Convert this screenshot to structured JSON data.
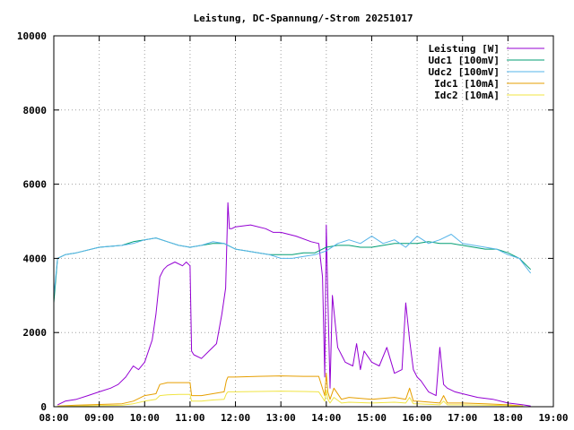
{
  "chart_data": {
    "type": "line",
    "title": "Leistung, DC-Spannung/-Strom 20251017",
    "xlabel": "",
    "ylabel": "",
    "xlim": [
      "08:00",
      "19:00"
    ],
    "ylim": [
      0,
      10000
    ],
    "x_ticks": [
      "08:00",
      "09:00",
      "10:00",
      "11:00",
      "12:00",
      "13:00",
      "14:00",
      "15:00",
      "16:00",
      "17:00",
      "18:00",
      "19:00"
    ],
    "y_ticks": [
      "0",
      "2000",
      "4000",
      "6000",
      "8000",
      "10000"
    ],
    "grid": true,
    "legend_position": "top-right",
    "series": [
      {
        "name": "Leistung [W]",
        "color": "#9400d3",
        "x": [
          "08:05",
          "08:15",
          "08:30",
          "08:45",
          "09:00",
          "09:15",
          "09:25",
          "09:35",
          "09:45",
          "09:52",
          "10:00",
          "10:10",
          "10:15",
          "10:20",
          "10:25",
          "10:30",
          "10:40",
          "10:50",
          "10:55",
          "11:00",
          "11:02",
          "11:05",
          "11:15",
          "11:25",
          "11:35",
          "11:42",
          "11:47",
          "11:50",
          "11:52",
          "11:55",
          "12:00",
          "12:20",
          "12:40",
          "12:50",
          "13:00",
          "13:20",
          "13:40",
          "13:50",
          "13:55",
          "13:58",
          "14:00",
          "14:02",
          "14:05",
          "14:08",
          "14:15",
          "14:25",
          "14:35",
          "14:40",
          "14:45",
          "14:50",
          "15:00",
          "15:10",
          "15:20",
          "15:30",
          "15:40",
          "15:45",
          "15:50",
          "15:55",
          "16:00",
          "16:05",
          "16:15",
          "16:25",
          "16:30",
          "16:35",
          "16:40",
          "16:50",
          "17:00",
          "17:20",
          "17:40",
          "18:00",
          "18:20",
          "18:30"
        ],
        "values": [
          50,
          150,
          200,
          300,
          400,
          500,
          600,
          800,
          1100,
          1000,
          1200,
          1800,
          2500,
          3500,
          3700,
          3800,
          3900,
          3800,
          3900,
          3800,
          1500,
          1400,
          1300,
          1500,
          1700,
          2500,
          3200,
          5500,
          4800,
          4800,
          4850,
          4900,
          4800,
          4700,
          4700,
          4600,
          4450,
          4400,
          3500,
          800,
          4900,
          3000,
          500,
          3000,
          1600,
          1200,
          1100,
          1700,
          1000,
          1500,
          1200,
          1100,
          1600,
          900,
          1000,
          2800,
          1800,
          1000,
          800,
          700,
          400,
          300,
          1600,
          600,
          500,
          400,
          350,
          250,
          200,
          100,
          50,
          20
        ]
      },
      {
        "name": "Udc1 [100mV]",
        "color": "#009e73",
        "x": [
          "08:00",
          "08:05",
          "08:15",
          "08:30",
          "09:00",
          "09:30",
          "09:45",
          "10:00",
          "10:15",
          "10:30",
          "10:45",
          "11:00",
          "11:15",
          "11:30",
          "11:45",
          "12:00",
          "12:15",
          "12:30",
          "12:45",
          "13:00",
          "13:15",
          "13:30",
          "13:45",
          "14:00",
          "14:15",
          "14:30",
          "14:45",
          "15:00",
          "15:15",
          "15:30",
          "15:45",
          "16:00",
          "16:15",
          "16:30",
          "16:45",
          "17:00",
          "17:15",
          "17:30",
          "17:45",
          "18:00",
          "18:15",
          "18:30"
        ],
        "values": [
          2800,
          4000,
          4100,
          4150,
          4300,
          4350,
          4450,
          4500,
          4550,
          4450,
          4350,
          4300,
          4350,
          4400,
          4400,
          4250,
          4200,
          4150,
          4100,
          4100,
          4100,
          4150,
          4150,
          4300,
          4350,
          4350,
          4300,
          4300,
          4350,
          4400,
          4400,
          4400,
          4450,
          4400,
          4400,
          4350,
          4300,
          4250,
          4250,
          4150,
          4000,
          3700
        ]
      },
      {
        "name": "Udc2 [100mV]",
        "color": "#56b4e9",
        "x": [
          "08:00",
          "08:05",
          "08:15",
          "08:30",
          "09:00",
          "09:30",
          "09:45",
          "10:00",
          "10:15",
          "10:30",
          "10:45",
          "11:00",
          "11:15",
          "11:30",
          "11:45",
          "12:00",
          "12:15",
          "12:30",
          "12:45",
          "13:00",
          "13:15",
          "13:30",
          "13:45",
          "14:00",
          "14:15",
          "14:30",
          "14:45",
          "15:00",
          "15:15",
          "15:30",
          "15:45",
          "16:00",
          "16:15",
          "16:30",
          "16:45",
          "17:00",
          "17:15",
          "17:30",
          "17:45",
          "18:00",
          "18:15",
          "18:30"
        ],
        "values": [
          3000,
          4000,
          4100,
          4150,
          4300,
          4350,
          4400,
          4500,
          4550,
          4450,
          4350,
          4300,
          4350,
          4450,
          4400,
          4250,
          4200,
          4150,
          4100,
          4000,
          4000,
          4050,
          4100,
          4200,
          4400,
          4500,
          4400,
          4600,
          4400,
          4500,
          4300,
          4600,
          4400,
          4500,
          4650,
          4400,
          4350,
          4300,
          4250,
          4100,
          4000,
          3600
        ]
      },
      {
        "name": "Idc1 [10mA]",
        "color": "#e69f00",
        "x": [
          "08:05",
          "08:30",
          "09:00",
          "09:30",
          "09:45",
          "10:00",
          "10:15",
          "10:20",
          "10:30",
          "10:45",
          "11:00",
          "11:02",
          "11:15",
          "11:30",
          "11:45",
          "11:48",
          "11:50",
          "12:00",
          "12:30",
          "13:00",
          "13:30",
          "13:50",
          "13:58",
          "14:00",
          "14:02",
          "14:05",
          "14:10",
          "14:20",
          "14:30",
          "15:00",
          "15:30",
          "15:45",
          "15:50",
          "15:55",
          "16:00",
          "16:30",
          "16:35",
          "16:40",
          "17:00",
          "17:30",
          "18:00",
          "18:20"
        ],
        "values": [
          20,
          40,
          60,
          80,
          150,
          300,
          350,
          600,
          650,
          650,
          650,
          300,
          300,
          350,
          400,
          700,
          800,
          800,
          820,
          830,
          820,
          820,
          300,
          900,
          400,
          200,
          500,
          200,
          250,
          200,
          250,
          200,
          500,
          150,
          150,
          100,
          300,
          100,
          100,
          80,
          50,
          20
        ]
      },
      {
        "name": "Idc2 [10mA]",
        "color": "#f0e442",
        "x": [
          "08:05",
          "08:30",
          "09:00",
          "09:30",
          "09:45",
          "10:00",
          "10:15",
          "10:20",
          "10:30",
          "10:45",
          "11:00",
          "11:02",
          "11:15",
          "11:30",
          "11:45",
          "11:48",
          "11:50",
          "12:00",
          "12:30",
          "13:00",
          "13:30",
          "13:50",
          "13:58",
          "14:00",
          "14:02",
          "14:05",
          "14:10",
          "14:20",
          "14:30",
          "15:00",
          "15:30",
          "15:45",
          "15:50",
          "15:55",
          "16:00",
          "16:30",
          "16:35",
          "16:40",
          "17:00",
          "17:30",
          "18:00",
          "18:20"
        ],
        "values": [
          10,
          20,
          30,
          40,
          80,
          150,
          200,
          300,
          320,
          330,
          330,
          150,
          150,
          180,
          200,
          350,
          400,
          400,
          410,
          420,
          410,
          400,
          150,
          450,
          200,
          100,
          250,
          100,
          120,
          100,
          120,
          100,
          250,
          80,
          80,
          50,
          150,
          50,
          50,
          40,
          30,
          10
        ]
      }
    ]
  }
}
